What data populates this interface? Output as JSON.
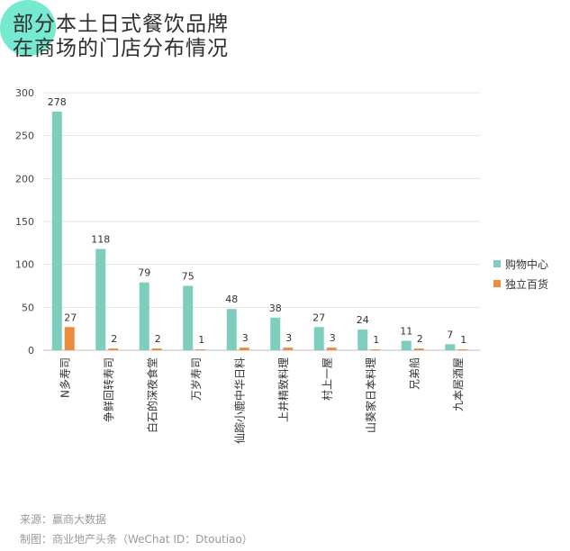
{
  "title": {
    "line1": "部分本土日式餐饮品牌",
    "line2": "在商场的门店分布情况"
  },
  "chart_data": {
    "type": "bar",
    "categories": [
      "N多寿司",
      "争鲜回转寿司",
      "白石的深夜食堂",
      "万岁寿司",
      "仙踪小鹿中华日料",
      "上井精致料理",
      "村上一屋",
      "山葵家日本料理",
      "兄弟船",
      "九本居酒屋"
    ],
    "series": [
      {
        "name": "购物中心",
        "values": [
          278,
          118,
          79,
          75,
          48,
          38,
          27,
          24,
          11,
          7
        ],
        "color": "#7ecdbf"
      },
      {
        "name": "独立百货",
        "values": [
          27,
          2,
          2,
          1,
          3,
          3,
          3,
          1,
          2,
          1
        ],
        "color": "#ee8a3c"
      }
    ],
    "yticks": [
      0,
      50,
      100,
      150,
      200,
      250,
      300
    ],
    "ylim": [
      0,
      300
    ],
    "grid": true,
    "legend_position": "right"
  },
  "footer": {
    "source": "来源：赢商大数据",
    "credit": "制图：商业地产头条（WeChat ID：Dtoutiao）"
  }
}
